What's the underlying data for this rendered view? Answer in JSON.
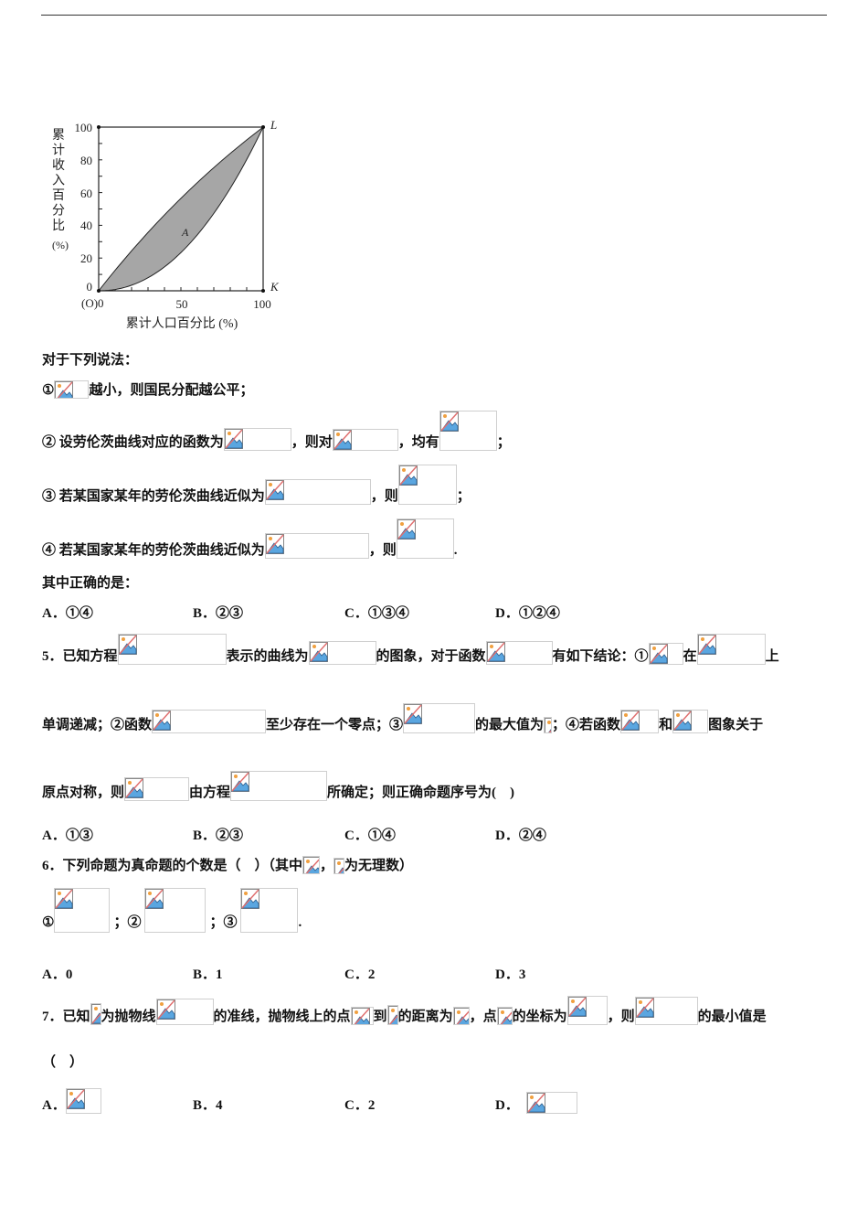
{
  "figure": {
    "y_ticks": [
      "100",
      "80",
      "60",
      "40",
      "20",
      "0"
    ],
    "x_ticks": [
      "(O)0",
      "50",
      "100"
    ],
    "y_label": "累计收入百分比",
    "y_unit": "(%)",
    "x_label": "累计人口百分比 (%)",
    "point_L": "L",
    "point_K": "K",
    "region": "A",
    "fill_color": "#a6a6a6"
  },
  "q4": {
    "intro": "对于下列说法：",
    "s1": [
      "①",
      "越小，则国民分配越公平；"
    ],
    "s2": [
      "② 设劳伦茨曲线对应的函数为",
      "，则对",
      "，均有",
      "；"
    ],
    "s3": [
      "③ 若某国家某年的劳伦茨曲线近似为",
      "，则",
      "；"
    ],
    "s4": [
      "④ 若某国家某年的劳伦茨曲线近似为",
      "，则",
      "."
    ],
    "question": "其中正确的是：",
    "options": [
      "A．①④",
      "B．②③",
      "C．①③④",
      "D．①②④"
    ]
  },
  "q5": {
    "l1": [
      "5．已知方程",
      "表示的曲线为",
      "的图象，对于函数",
      "有如下结论：①",
      "在",
      "上"
    ],
    "l2": [
      "单调递减；②函数",
      "至少存在一个零点；③",
      "的最大值为",
      "；④若函数",
      "和",
      "图象关于"
    ],
    "l3": [
      "原点对称，则",
      "由方程",
      "所确定；则正确命题序号为(　)"
    ],
    "options": [
      "A．①③",
      "B．②③",
      "C．①④",
      "D．②④"
    ]
  },
  "q6": {
    "l1": [
      "6．下列命题为真命题的个数是（　）（其中",
      "，",
      "为无理数）"
    ],
    "items": [
      "①",
      "；②",
      "；③",
      "."
    ],
    "options": [
      "A．0",
      "B．1",
      "C．2",
      "D．3"
    ]
  },
  "q7": {
    "l1": [
      "7．已知",
      "为抛物线",
      "的准线，抛物线上的点",
      "到",
      "的距离为",
      "，点",
      "的坐标为",
      "，则",
      "的最小值是"
    ],
    "l2": "（　）",
    "options": [
      "A．",
      "B．4",
      "C．2",
      "D．"
    ]
  }
}
